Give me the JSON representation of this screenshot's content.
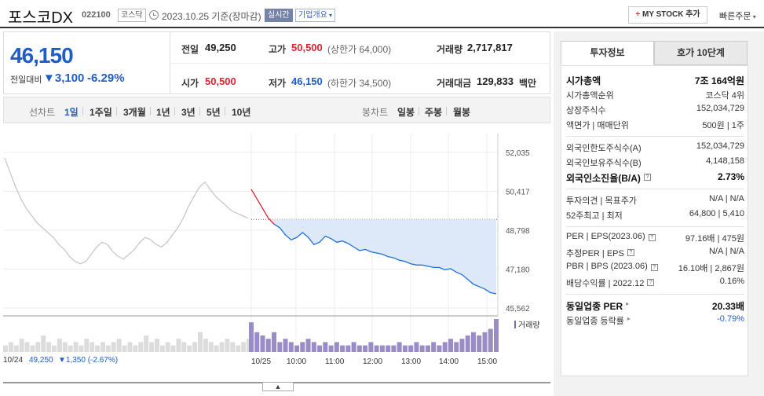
{
  "header": {
    "stock_name": "포스코DX",
    "stock_code": "022100",
    "market_badge": "코스닥",
    "date_text": "2023.10.25 기준(장마감)",
    "live_badge": "실시간",
    "company_info": "기업개요",
    "mystock_label": "MY STOCK 추가",
    "quick_order": "빠른주문"
  },
  "price": {
    "current": "46,150",
    "prev_compare_label": "전일대비",
    "change_amount": "▼3,100",
    "change_pct": "-6.29%"
  },
  "quote": {
    "prev_label": "전일",
    "prev_value": "49,250",
    "high_label": "고가",
    "high_value": "50,500",
    "upper_limit": "(상한가 64,000)",
    "volume_label": "거래량",
    "volume_value": "2,717,817",
    "open_label": "시가",
    "open_value": "50,500",
    "low_label": "저가",
    "low_value": "46,150",
    "lower_limit": "(하한가 34,500)",
    "amount_label": "거래대금",
    "amount_value": "129,833",
    "amount_unit": "백만"
  },
  "tabs": {
    "line_label": "선차트",
    "line_items": [
      "1일",
      "1주일",
      "3개월",
      "1년",
      "3년",
      "5년",
      "10년"
    ],
    "active_index": 0,
    "candle_label": "봉차트",
    "candle_items": [
      "일봉",
      "주봉",
      "월봉"
    ]
  },
  "chart_data": {
    "type": "line",
    "y_ticks": [
      "52,035",
      "50,417",
      "48,798",
      "47,180",
      "45,562"
    ],
    "ylim": [
      45562,
      52035
    ],
    "prev_close_line": 49250,
    "x_ticks": [
      "10/25",
      "10:00",
      "11:00",
      "12:00",
      "13:00",
      "14:00",
      "15:00"
    ],
    "prev_day_label": "10/24",
    "prev_day_close": "49,250",
    "prev_day_change": "▼1,350 (-2.67%)",
    "volume_label": "거래량",
    "prev_day_series": [
      51800,
      51200,
      50600,
      50100,
      49700,
      49400,
      49100,
      48900,
      48700,
      48500,
      48200,
      48000,
      47700,
      47500,
      47400,
      47500,
      47800,
      48100,
      48300,
      48200,
      47900,
      47700,
      47600,
      47800,
      48000,
      48300,
      48500,
      48400,
      48200,
      48100,
      48300,
      48600,
      48900,
      49300,
      49800,
      50200,
      50600,
      50800,
      50500,
      50200,
      50000,
      49800,
      49600,
      49500,
      49400,
      49300
    ],
    "today_series": [
      50500,
      50100,
      49700,
      49300,
      49050,
      48900,
      48600,
      48400,
      48500,
      48700,
      48500,
      48200,
      48300,
      48550,
      48450,
      48300,
      48350,
      48250,
      48100,
      47950,
      48000,
      47900,
      47850,
      47800,
      47700,
      47650,
      47550,
      47500,
      47400,
      47350,
      47350,
      47300,
      47250,
      47250,
      47150,
      47200,
      47050,
      46950,
      46750,
      46550,
      46450,
      46350,
      46200,
      46150
    ],
    "prev_day_volume": [
      2,
      3,
      2,
      4,
      3,
      2,
      3,
      5,
      3,
      2,
      4,
      3,
      2,
      3,
      2,
      4,
      3,
      2,
      3,
      2,
      3,
      4,
      2,
      3,
      2,
      3,
      5,
      3,
      4,
      2,
      3,
      2,
      4,
      3,
      2,
      3,
      6,
      4,
      3,
      2,
      3,
      4,
      3,
      2,
      3,
      4
    ],
    "today_volume": [
      9,
      6,
      5,
      4,
      6,
      3,
      4,
      3,
      2,
      3,
      4,
      3,
      2,
      3,
      2,
      3,
      2,
      2,
      3,
      2,
      2,
      3,
      2,
      2,
      2,
      2,
      3,
      2,
      2,
      3,
      2,
      2,
      3,
      2,
      3,
      4,
      3,
      4,
      5,
      6,
      5,
      6,
      7,
      10
    ]
  },
  "right_panel": {
    "tab_invest": "투자정보",
    "tab_hoga": "호가 10단계",
    "rows1": [
      {
        "label": "시가총액",
        "value": "7조 164억원",
        "bold": true
      },
      {
        "label": "시가총액순위",
        "value": "코스닥 4위"
      },
      {
        "label": "상장주식수",
        "value": "152,034,729"
      },
      {
        "label": "액면가 | 매매단위",
        "value": "500원 | 1주"
      }
    ],
    "rows2": [
      {
        "label": "외국인한도주식수(A)",
        "value": "152,034,729"
      },
      {
        "label": "외국인보유주식수(B)",
        "value": "4,148,158"
      },
      {
        "label": "외국인소진율(B/A)",
        "value": "2.73%",
        "bold": true,
        "help": "?"
      }
    ],
    "rows3": [
      {
        "label": "투자의견 | 목표주가",
        "value": "N/A | N/A"
      },
      {
        "label": "52주최고 | 최저",
        "value": "64,800 | 5,410"
      }
    ],
    "rows4": [
      {
        "label": "PER | EPS(2023.06)",
        "value": "97.16배 | 475원",
        "help": "?"
      },
      {
        "label": "추정PER | EPS",
        "value": "N/A | N/A",
        "help": "?"
      },
      {
        "label": "PBR | BPS (2023.06)",
        "value": "16.10배 | 2,867원",
        "help": "?"
      },
      {
        "label": "배당수익률 | 2022.12",
        "value": "0.16%",
        "help": "?"
      }
    ],
    "rows5": [
      {
        "label": "동일업종 PER",
        "value": "20.33배",
        "bold": true,
        "arrow": true
      },
      {
        "label": "동일업종 등락률",
        "value": "-0.79%",
        "blue": true,
        "arrow": true
      }
    ]
  }
}
